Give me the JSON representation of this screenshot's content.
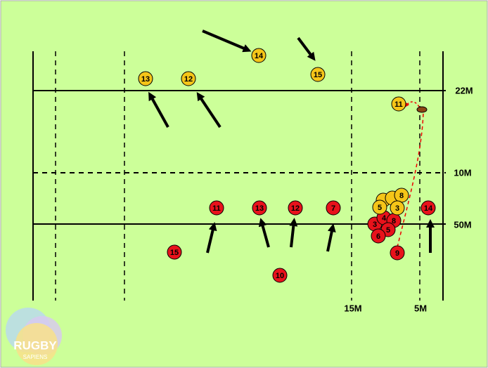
{
  "field_labels": {
    "twenty_two": "22M",
    "ten": "10M",
    "fifty": "50M",
    "fifteen": "15M",
    "five": "5M"
  },
  "yellow_players": [
    "14",
    "13",
    "12",
    "15",
    "11",
    "8",
    "5",
    "3"
  ],
  "red_players": [
    "11",
    "13",
    "12",
    "7",
    "14",
    "15",
    "10",
    "9",
    "3",
    "4",
    "8",
    "5",
    "6"
  ],
  "logo": {
    "title": "RUGBY",
    "subtitle": "SAPIENS"
  }
}
